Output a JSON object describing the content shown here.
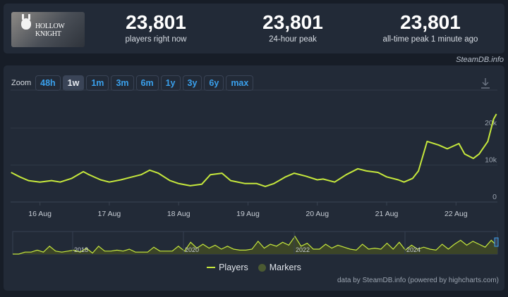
{
  "game": {
    "title": "HOLLOW KNIGHT"
  },
  "stats": [
    {
      "value": "23,801",
      "label": "players right now"
    },
    {
      "value": "23,801",
      "label": "24-hour peak"
    },
    {
      "value": "23,801",
      "label": "all-time peak 1 minute ago"
    }
  ],
  "brand": "SteamDB.info",
  "zoom": {
    "label": "Zoom",
    "buttons": [
      "48h",
      "1w",
      "1m",
      "3m",
      "6m",
      "1y",
      "3y",
      "6y",
      "max"
    ],
    "active": "1w"
  },
  "legend": {
    "players": "Players",
    "markers": "Markers"
  },
  "credit": "data by SteamDB.info (powered by highcharts.com)",
  "colors": {
    "line": "#c6e83c",
    "markers": "#4b5a32",
    "accent": "#3aa0ec"
  },
  "chart_data": {
    "type": "line",
    "series": [
      {
        "name": "Players",
        "points": [
          [
            "15 Aug 14:00",
            8000
          ],
          [
            "15 Aug 17:00",
            6800
          ],
          [
            "15 Aug 20:00",
            5800
          ],
          [
            "16 Aug 00:00",
            5400
          ],
          [
            "16 Aug 04:00",
            5800
          ],
          [
            "16 Aug 07:00",
            5400
          ],
          [
            "16 Aug 11:00",
            6400
          ],
          [
            "16 Aug 15:00",
            8200
          ],
          [
            "16 Aug 17:00",
            7400
          ],
          [
            "16 Aug 21:00",
            6000
          ],
          [
            "17 Aug 00:00",
            5400
          ],
          [
            "17 Aug 04:00",
            6000
          ],
          [
            "17 Aug 07:00",
            6600
          ],
          [
            "17 Aug 11:00",
            7400
          ],
          [
            "17 Aug 14:00",
            8600
          ],
          [
            "17 Aug 17:00",
            7800
          ],
          [
            "17 Aug 21:00",
            5800
          ],
          [
            "18 Aug 00:00",
            5000
          ],
          [
            "18 Aug 04:00",
            4400
          ],
          [
            "18 Aug 08:00",
            4800
          ],
          [
            "18 Aug 11:00",
            7400
          ],
          [
            "18 Aug 15:00",
            7800
          ],
          [
            "18 Aug 18:00",
            5800
          ],
          [
            "18 Aug 23:00",
            5000
          ],
          [
            "19 Aug 03:00",
            5000
          ],
          [
            "19 Aug 06:00",
            4200
          ],
          [
            "19 Aug 09:00",
            5000
          ],
          [
            "19 Aug 13:00",
            6800
          ],
          [
            "19 Aug 16:00",
            7800
          ],
          [
            "19 Aug 20:00",
            7000
          ],
          [
            "20 Aug 00:00",
            6000
          ],
          [
            "20 Aug 02:00",
            6200
          ],
          [
            "20 Aug 06:00",
            5400
          ],
          [
            "20 Aug 10:00",
            7400
          ],
          [
            "20 Aug 14:00",
            9000
          ],
          [
            "20 Aug 17:00",
            8400
          ],
          [
            "20 Aug 21:00",
            8000
          ],
          [
            "21 Aug 00:00",
            6800
          ],
          [
            "21 Aug 04:00",
            6000
          ],
          [
            "21 Aug 06:00",
            5400
          ],
          [
            "21 Aug 09:00",
            6400
          ],
          [
            "21 Aug 11:00",
            8400
          ],
          [
            "21 Aug 14:00",
            16400
          ],
          [
            "21 Aug 18:00",
            15400
          ],
          [
            "21 Aug 21:00",
            14400
          ],
          [
            "22 Aug 01:00",
            15800
          ],
          [
            "22 Aug 03:00",
            13000
          ],
          [
            "22 Aug 06:00",
            11800
          ],
          [
            "22 Aug 08:00",
            13000
          ],
          [
            "22 Aug 11:00",
            16400
          ],
          [
            "22 Aug 13:00",
            22400
          ],
          [
            "22 Aug 14:00",
            23801
          ]
        ]
      }
    ],
    "x_ticks": [
      "16 Aug",
      "17 Aug",
      "18 Aug",
      "19 Aug",
      "20 Aug",
      "21 Aug",
      "22 Aug"
    ],
    "y_ticks": [
      "0",
      "10k",
      "20k"
    ],
    "ylim": [
      0,
      28000
    ],
    "grid": true,
    "legend_position": "bottom",
    "navigator": {
      "x_ticks": [
        "2018",
        "2020",
        "2022",
        "2024"
      ],
      "values": [
        0,
        0,
        2,
        2,
        4,
        2,
        8,
        3,
        2,
        3,
        4,
        2,
        6,
        1,
        8,
        3,
        3,
        4,
        3,
        5,
        2,
        2,
        2,
        7,
        3,
        3,
        3,
        8,
        3,
        12,
        6,
        10,
        6,
        9,
        5,
        8,
        5,
        4,
        4,
        5,
        13,
        6,
        10,
        8,
        12,
        9,
        18,
        8,
        11,
        5,
        5,
        10,
        6,
        9,
        7,
        5,
        4,
        10,
        5,
        6,
        5,
        11,
        5,
        12,
        4,
        9,
        5,
        7,
        5,
        4,
        10,
        5,
        10,
        14,
        9,
        13,
        10,
        7,
        14,
        8
      ]
    }
  }
}
